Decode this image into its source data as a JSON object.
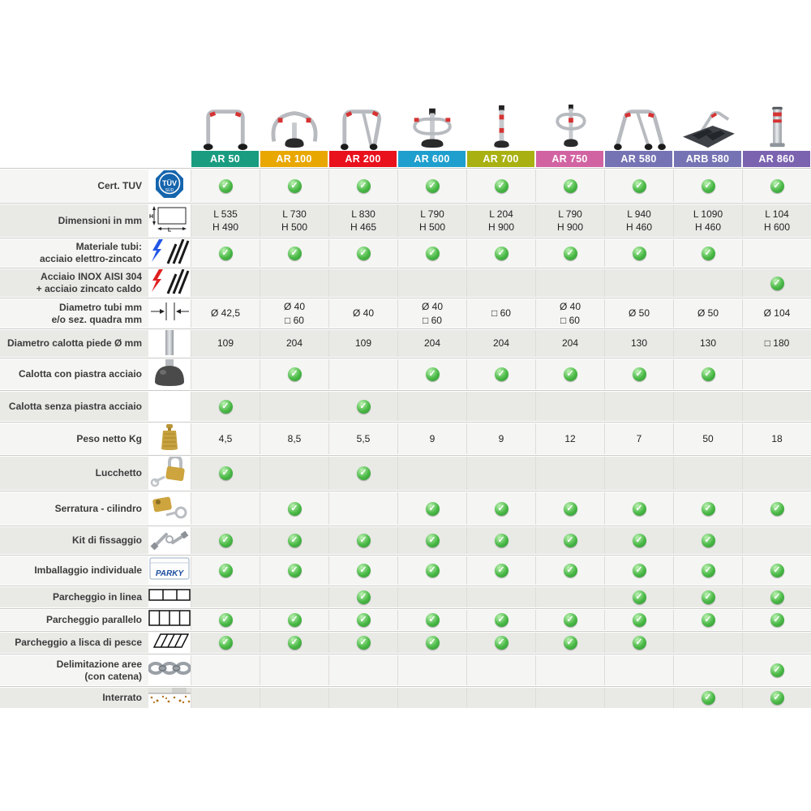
{
  "table": {
    "check_color": "#3fae49",
    "columns": [
      {
        "id": "ar50",
        "label": "AR 50",
        "color": "#1a9c80"
      },
      {
        "id": "ar100",
        "label": "AR 100",
        "color": "#e9a702"
      },
      {
        "id": "ar200",
        "label": "AR 200",
        "color": "#e8111c"
      },
      {
        "id": "ar600",
        "label": "AR 600",
        "color": "#1f9fce"
      },
      {
        "id": "ar700",
        "label": "AR 700",
        "color": "#a9b112"
      },
      {
        "id": "ar750",
        "label": "AR 750",
        "color": "#d263a2"
      },
      {
        "id": "ar580",
        "label": "AR 580",
        "color": "#7673b4"
      },
      {
        "id": "arb580",
        "label": "ARB 580",
        "color": "#7673b4"
      },
      {
        "id": "ar860",
        "label": "AR 860",
        "color": "#7b63b0"
      }
    ],
    "rows": [
      {
        "key": "cert-tuv",
        "label": "Cert. TUV",
        "icon": "tuv-logo",
        "values": [
          "check",
          "check",
          "check",
          "check",
          "check",
          "check",
          "check",
          "check",
          "check"
        ]
      },
      {
        "key": "dimensioni",
        "label": "Dimensioni in mm",
        "icon": "dimensions-diagram",
        "values": [
          "L 535\nH 490",
          "L 730\nH 500",
          "L 830\nH 465",
          "L 790\nH 500",
          "L 204\nH 900",
          "L 790\nH 900",
          "L 940\nH 460",
          "L 1090\nH 460",
          "L 104\nH 600"
        ]
      },
      {
        "key": "materiale-tubi",
        "label": "Materiale tubi:\nacciaio elettro-zincato",
        "icon": "lightning-blue-tubes",
        "values": [
          "check",
          "check",
          "check",
          "check",
          "check",
          "check",
          "check",
          "check",
          ""
        ]
      },
      {
        "key": "acciaio-inox",
        "label": "Acciaio INOX AISI 304\n+ acciaio zincato caldo",
        "icon": "lightning-red-tubes",
        "values": [
          "",
          "",
          "",
          "",
          "",
          "",
          "",
          "",
          "check"
        ]
      },
      {
        "key": "diametro-tubi",
        "label": "Diametro tubi mm\ne/o sez. quadra mm",
        "icon": "tube-diameter-arrows",
        "values": [
          "Ø 42,5",
          "Ø 40\n□ 60",
          "Ø 40",
          "Ø 40\n□ 60",
          "□ 60",
          "Ø 40\n□ 60",
          "Ø 50",
          "Ø 50",
          "Ø 104"
        ]
      },
      {
        "key": "diametro-calotta",
        "label": "Diametro calotta piede Ø mm",
        "icon": "pole-photo",
        "values": [
          "109",
          "204",
          "109",
          "204",
          "204",
          "204",
          "130",
          "130",
          "□ 180"
        ]
      },
      {
        "key": "calotta-con-piastra",
        "label": "Calotta con piastra acciaio",
        "icon": "foot-cap-photo",
        "values": [
          "",
          "check",
          "",
          "check",
          "check",
          "check",
          "check",
          "check",
          ""
        ]
      },
      {
        "key": "calotta-senza-piastra",
        "label": "Calotta senza piastra acciaio",
        "icon": "",
        "values": [
          "check",
          "",
          "check",
          "",
          "",
          "",
          "",
          "",
          ""
        ]
      },
      {
        "key": "peso-netto",
        "label": "Peso netto Kg",
        "icon": "weight",
        "values": [
          "4,5",
          "8,5",
          "5,5",
          "9",
          "9",
          "12",
          "7",
          "50",
          "18"
        ]
      },
      {
        "key": "lucchetto",
        "label": "Lucchetto",
        "icon": "padlock",
        "values": [
          "check",
          "",
          "check",
          "",
          "",
          "",
          "",
          "",
          ""
        ]
      },
      {
        "key": "serratura-cilindro",
        "label": "Serratura - cilindro",
        "icon": "cylinder-lock",
        "values": [
          "",
          "check",
          "",
          "check",
          "check",
          "check",
          "check",
          "check",
          "check"
        ]
      },
      {
        "key": "kit-fissaggio",
        "label": "Kit di fissaggio",
        "icon": "fixing-kit",
        "values": [
          "check",
          "check",
          "check",
          "check",
          "check",
          "check",
          "check",
          "check",
          ""
        ]
      },
      {
        "key": "imballaggio",
        "label": "Imballaggio individuale",
        "icon": "parky-box",
        "values": [
          "check",
          "check",
          "check",
          "check",
          "check",
          "check",
          "check",
          "check",
          "check"
        ]
      },
      {
        "key": "parcheggio-linea",
        "label": "Parcheggio in linea",
        "icon": "parking-inline",
        "values": [
          "",
          "",
          "check",
          "",
          "",
          "",
          "check",
          "check",
          "check"
        ]
      },
      {
        "key": "parcheggio-parallelo",
        "label": "Parcheggio parallelo",
        "icon": "parking-parallel",
        "values": [
          "check",
          "check",
          "check",
          "check",
          "check",
          "check",
          "check",
          "check",
          "check"
        ]
      },
      {
        "key": "parcheggio-lisca",
        "label": "Parcheggio a lisca di pesce",
        "icon": "parking-herringbone",
        "values": [
          "check",
          "check",
          "check",
          "check",
          "check",
          "check",
          "check",
          "",
          ""
        ]
      },
      {
        "key": "delimitazione-aree",
        "label": "Delimitazione aree\n(con catena)",
        "icon": "chain",
        "values": [
          "",
          "",
          "",
          "",
          "",
          "",
          "",
          "",
          "check"
        ]
      },
      {
        "key": "interrato",
        "label": "Interrato",
        "icon": "underground",
        "values": [
          "",
          "",
          "",
          "",
          "",
          "",
          "",
          "check",
          "check"
        ]
      }
    ]
  }
}
